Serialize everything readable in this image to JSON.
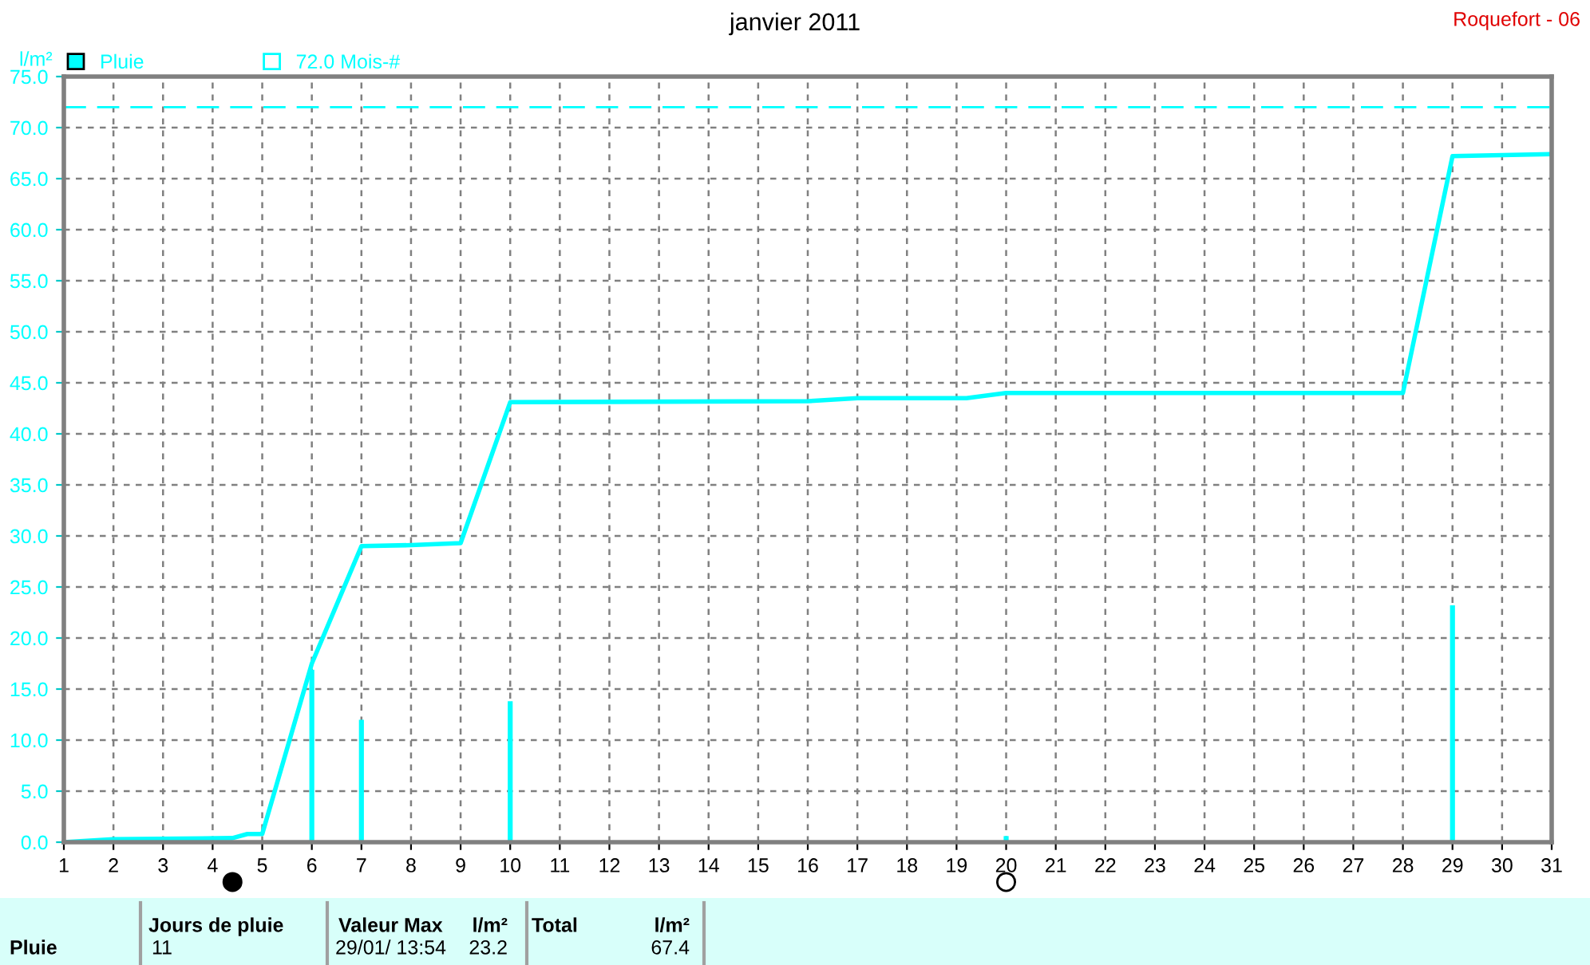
{
  "chart_data": {
    "type": "bar",
    "title": "janvier 2011",
    "subtitle": "Roquefort - 06",
    "ylabel": "l/m²",
    "xlim": [
      1,
      31
    ],
    "xticks": [
      1,
      2,
      3,
      4,
      5,
      6,
      7,
      8,
      9,
      10,
      11,
      12,
      13,
      14,
      15,
      16,
      17,
      18,
      19,
      20,
      21,
      22,
      23,
      24,
      25,
      26,
      27,
      28,
      29,
      30,
      31
    ],
    "ylim": [
      0,
      75
    ],
    "yticks": [
      {
        "value": 0,
        "label": "0.0"
      },
      {
        "value": 5,
        "label": "5.0"
      },
      {
        "value": 10,
        "label": "10.0"
      },
      {
        "value": 15,
        "label": "15.0"
      },
      {
        "value": 20,
        "label": "20.0"
      },
      {
        "value": 25,
        "label": "25.0"
      },
      {
        "value": 30,
        "label": "30.0"
      },
      {
        "value": 35,
        "label": "35.0"
      },
      {
        "value": 40,
        "label": "40.0"
      },
      {
        "value": 45,
        "label": "45.0"
      },
      {
        "value": 50,
        "label": "50.0"
      },
      {
        "value": 55,
        "label": "55.0"
      },
      {
        "value": 60,
        "label": "60.0"
      },
      {
        "value": 65,
        "label": "65.0"
      },
      {
        "value": 70,
        "label": "70.0"
      },
      {
        "value": 75,
        "label": "75.0"
      }
    ],
    "grid": true,
    "legend": "top left",
    "series": [
      {
        "name": "Pluie",
        "color": "#00ffff",
        "x": [
          6,
          7,
          10,
          20,
          29
        ],
        "values": [
          16.9,
          12.0,
          13.8,
          0.6,
          23.2
        ]
      },
      {
        "type": "line",
        "color": "#00ffff",
        "x": [
          1,
          2,
          4.4,
          4.7,
          5,
          6,
          7,
          8,
          9,
          10,
          16,
          17,
          19.2,
          20,
          28,
          29,
          31
        ],
        "values": [
          0,
          0.3,
          0.4,
          0.8,
          0.8,
          17.5,
          29.0,
          29.1,
          29.3,
          43.1,
          43.2,
          43.5,
          43.5,
          44.0,
          44.0,
          67.2,
          67.4
        ]
      }
    ],
    "ref_lines": [
      {
        "axis": "y",
        "value": 72.0,
        "label": "72.0 Mois-#",
        "color": "#00ffff",
        "line_style": "dashed"
      }
    ],
    "annotations": [
      "Pluie",
      "Jours de pluie",
      "11",
      "Valeur Max",
      "l/m²",
      "29/01/ 13:54",
      "23.2",
      "Total",
      "l/m²",
      "67.4"
    ]
  }
}
